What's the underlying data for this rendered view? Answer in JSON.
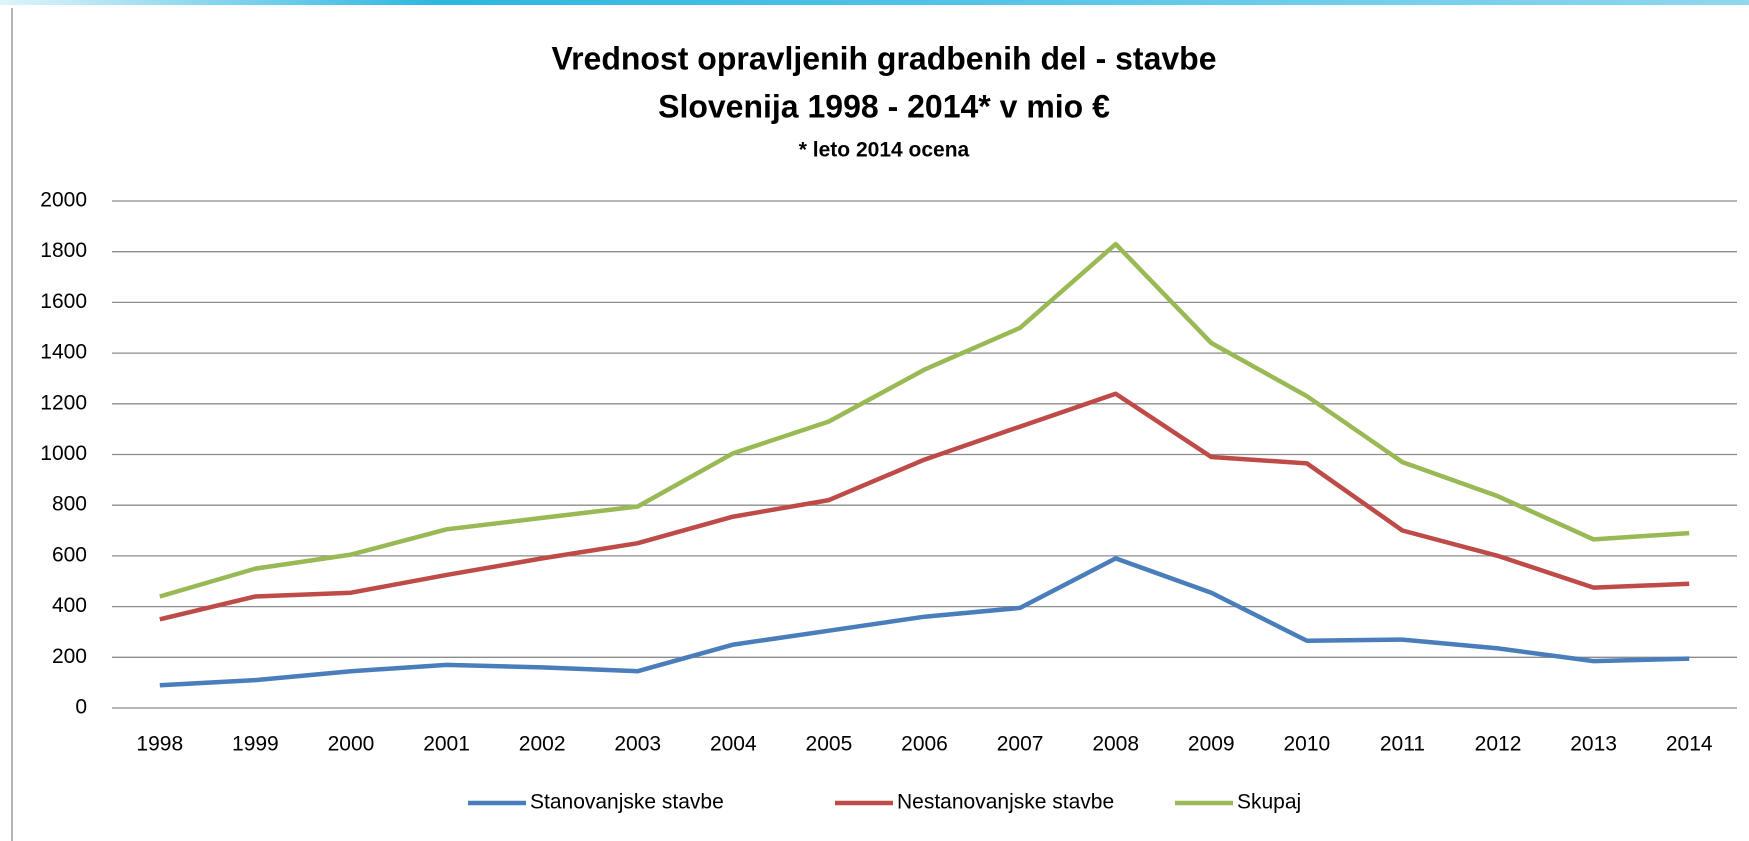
{
  "chart_data": {
    "type": "line",
    "title": "Vrednost opravljenih gradbenih del - stavbe",
    "subtitle": "Slovenija  1998 - 2014* v mio €",
    "note": "* leto 2014 ocena",
    "categories": [
      "1998",
      "1999",
      "2000",
      "2001",
      "2002",
      "2003",
      "2004",
      "2005",
      "2006",
      "2007",
      "2008",
      "2009",
      "2010",
      "2011",
      "2012",
      "2013",
      "2014"
    ],
    "series": [
      {
        "name": "Stanovanjske stavbe",
        "color": "#4a7ebb",
        "values": [
          90,
          110,
          145,
          170,
          160,
          145,
          250,
          305,
          360,
          395,
          590,
          455,
          265,
          270,
          235,
          185,
          195
        ]
      },
      {
        "name": "Nestanovanjske stavbe",
        "color": "#be4b48",
        "values": [
          350,
          440,
          455,
          525,
          590,
          650,
          755,
          820,
          980,
          1110,
          1240,
          990,
          965,
          700,
          600,
          475,
          490
        ]
      },
      {
        "name": "Skupaj",
        "color": "#98b954",
        "values": [
          440,
          550,
          605,
          705,
          750,
          795,
          1005,
          1130,
          1335,
          1500,
          1830,
          1440,
          1230,
          970,
          835,
          665,
          690
        ]
      }
    ],
    "ylim": [
      0,
      2000
    ],
    "yticks": [
      0,
      200,
      400,
      600,
      800,
      1000,
      1200,
      1400,
      1600,
      1800,
      2000
    ],
    "grid": true,
    "legend": "bottom"
  }
}
